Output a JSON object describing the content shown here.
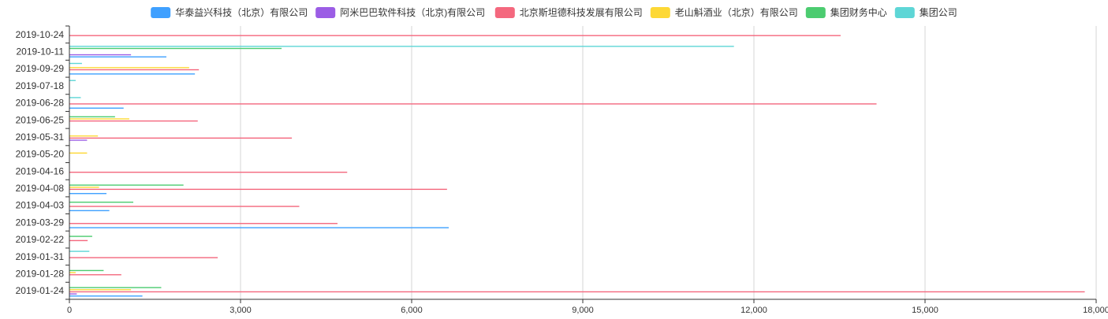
{
  "chart_data": {
    "type": "bar",
    "orientation": "horizontal",
    "grouped": true,
    "legend_position": "top",
    "grid": {
      "x": true,
      "y": false
    },
    "xlim": [
      0,
      18000
    ],
    "x_ticks": [
      0,
      3000,
      6000,
      9000,
      12000,
      15000,
      18000
    ],
    "x_tick_labels": [
      "0",
      "3,000",
      "6,000",
      "9,000",
      "12,000",
      "15,000",
      "18,000"
    ],
    "categories": [
      "2019-10-24",
      "2019-10-11",
      "2019-09-29",
      "2019-07-18",
      "2019-06-28",
      "2019-06-25",
      "2019-05-31",
      "2019-05-20",
      "2019-04-16",
      "2019-04-08",
      "2019-04-03",
      "2019-03-29",
      "2019-02-22",
      "2019-01-31",
      "2019-01-28",
      "2019-01-24"
    ],
    "series": [
      {
        "name": "华泰益兴科技（北京）有限公司",
        "color": "#3fa0ff",
        "values": [
          0,
          1700,
          2200,
          0,
          950,
          0,
          0,
          0,
          0,
          650,
          700,
          6650,
          0,
          0,
          0,
          1280
        ]
      },
      {
        "name": "阿米巴巴软件科技（北京)有限公司",
        "color": "#9b5de5",
        "values": [
          0,
          1080,
          0,
          0,
          0,
          0,
          310,
          0,
          0,
          0,
          0,
          0,
          0,
          0,
          0,
          130
        ]
      },
      {
        "name": "北京斯坦德科技发展有限公司",
        "color": "#f4687e",
        "values": [
          13520,
          0,
          2270,
          0,
          14150,
          2250,
          3900,
          0,
          4870,
          6620,
          4030,
          4700,
          320,
          2600,
          910,
          17800
        ]
      },
      {
        "name": "老山斛酒业（北京）有限公司",
        "color": "#fdd835",
        "values": [
          0,
          0,
          2100,
          0,
          0,
          1050,
          500,
          310,
          0,
          520,
          0,
          0,
          0,
          0,
          110,
          1080
        ]
      },
      {
        "name": "集团财务中心",
        "color": "#4ccc70",
        "values": [
          0,
          3720,
          0,
          0,
          0,
          800,
          0,
          0,
          0,
          2000,
          1120,
          0,
          400,
          0,
          600,
          1610
        ]
      },
      {
        "name": "集团公司",
        "color": "#5ed6d6",
        "values": [
          0,
          11650,
          220,
          110,
          200,
          0,
          0,
          0,
          0,
          0,
          0,
          0,
          0,
          350,
          0,
          0
        ]
      }
    ],
    "title": "",
    "xlabel": "",
    "ylabel": ""
  }
}
